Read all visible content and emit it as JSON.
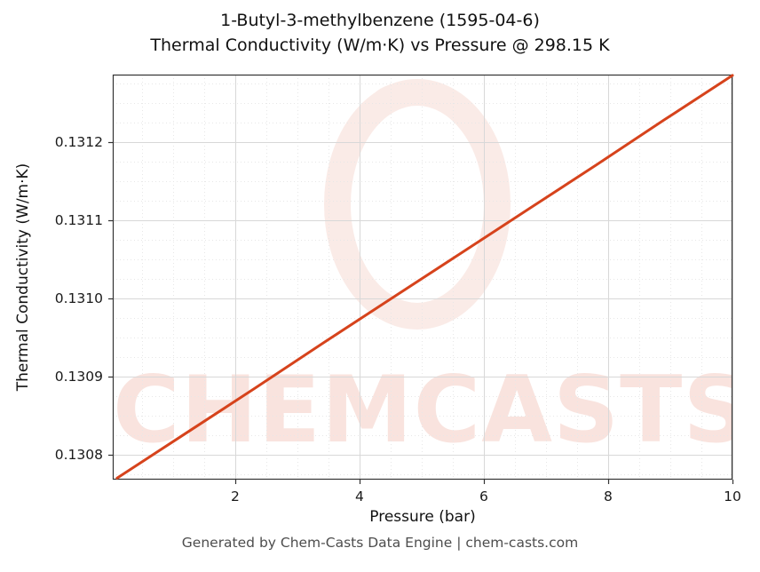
{
  "title": {
    "line1": "1-Butyl-3-methylbenzene (1595-04-6)",
    "line2": "Thermal Conductivity (W/m·K) vs Pressure @ 298.15 K"
  },
  "axes": {
    "xlabel": "Pressure (bar)",
    "ylabel": "Thermal Conductivity (W/m·K)"
  },
  "watermark": {
    "text": "CHEMCASTS"
  },
  "footer": "Generated by Chem-Casts Data Engine | chem-casts.com",
  "colors": {
    "line": "#d6431c",
    "watermark": "#d6431c",
    "grid_major": "#d8d8d8",
    "grid_minor": "#e7e7e7",
    "spine": "#333333"
  },
  "chart_data": {
    "type": "line",
    "title": "1-Butyl-3-methylbenzene (1595-04-6) Thermal Conductivity (W/m·K) vs Pressure @ 298.15 K",
    "xlabel": "Pressure (bar)",
    "ylabel": "Thermal Conductivity (W/m·K)",
    "x": [
      0.1,
      1.2,
      2.3,
      3.4,
      4.5,
      5.6,
      6.7,
      7.8,
      8.9,
      10.0
    ],
    "y": [
      0.13077,
      0.130827,
      0.130884,
      0.130942,
      0.130999,
      0.131056,
      0.131113,
      0.13117,
      0.131228,
      0.131285
    ],
    "xlim": [
      0.03,
      10.0
    ],
    "ylim": [
      0.130768,
      0.131286
    ],
    "xticks": [
      2,
      4,
      6,
      8,
      10
    ],
    "xtick_labels": [
      "2",
      "4",
      "6",
      "8",
      "10"
    ],
    "yticks": [
      0.1308,
      0.1309,
      0.131,
      0.1311,
      0.1312
    ],
    "ytick_labels": [
      "0.1308",
      "0.1309",
      "0.1310",
      "0.1311",
      "0.1312"
    ],
    "x_minor_step": 0.5,
    "y_minor_step": 2.5e-05,
    "grid": true,
    "legend": false,
    "line_color": "#d6431c",
    "temperature_K": "298.15"
  }
}
